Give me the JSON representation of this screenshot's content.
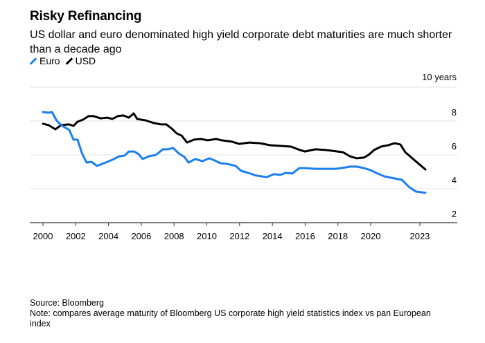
{
  "header": {
    "title": "Risky Refinancing",
    "subtitle": "US dollar and euro denominated high yield corporate debt maturities are much shorter than a decade ago"
  },
  "legend": [
    {
      "label": "Euro",
      "color": "#1a7ff0"
    },
    {
      "label": "USD",
      "color": "#000000"
    }
  ],
  "footer": {
    "source": "Source: Bloomberg",
    "note": "Note: compares average maturity of Bloomberg US corporate high yield statistics index vs pan European index"
  },
  "chart_data": {
    "type": "line",
    "title": "Risky Refinancing",
    "subtitle": "US dollar and euro denominated high yield corporate debt maturities are much shorter than a decade ago",
    "xlabel": "",
    "ylabel": "years",
    "xlim": [
      1999.2,
      2025.5
    ],
    "ylim": [
      2,
      10
    ],
    "x_ticks": [
      2000,
      2002,
      2004,
      2006,
      2008,
      2010,
      2012,
      2014,
      2016,
      2018,
      2020,
      2023
    ],
    "y_ticks": [
      {
        "value": 10,
        "label": "10 years"
      },
      {
        "value": 8,
        "label": "8"
      },
      {
        "value": 6,
        "label": "6"
      },
      {
        "value": 4,
        "label": "4"
      },
      {
        "value": 2,
        "label": "2"
      }
    ],
    "grid": true,
    "legend_position": "top-left",
    "series": [
      {
        "name": "Euro",
        "color": "#1a7ff0",
        "points": [
          [
            2000.0,
            8.53
          ],
          [
            2000.34,
            8.49
          ],
          [
            2000.55,
            8.53
          ],
          [
            2000.85,
            8.0
          ],
          [
            2001.18,
            7.71
          ],
          [
            2001.61,
            7.47
          ],
          [
            2001.86,
            6.9
          ],
          [
            2002.11,
            6.9
          ],
          [
            2002.37,
            6.12
          ],
          [
            2002.66,
            5.55
          ],
          [
            2002.96,
            5.59
          ],
          [
            2003.3,
            5.35
          ],
          [
            2003.72,
            5.51
          ],
          [
            2004.23,
            5.71
          ],
          [
            2004.65,
            5.92
          ],
          [
            2004.99,
            5.96
          ],
          [
            2005.24,
            6.2
          ],
          [
            2005.58,
            6.2
          ],
          [
            2005.84,
            6.04
          ],
          [
            2006.09,
            5.76
          ],
          [
            2006.47,
            5.92
          ],
          [
            2006.89,
            6.0
          ],
          [
            2007.32,
            6.33
          ],
          [
            2007.61,
            6.33
          ],
          [
            2007.95,
            6.41
          ],
          [
            2008.29,
            6.08
          ],
          [
            2008.63,
            5.88
          ],
          [
            2008.88,
            5.55
          ],
          [
            2009.3,
            5.76
          ],
          [
            2009.73,
            5.63
          ],
          [
            2010.15,
            5.8
          ],
          [
            2010.49,
            5.67
          ],
          [
            2010.83,
            5.51
          ],
          [
            2011.25,
            5.47
          ],
          [
            2011.76,
            5.35
          ],
          [
            2012.09,
            5.06
          ],
          [
            2012.52,
            4.94
          ],
          [
            2013.02,
            4.78
          ],
          [
            2013.66,
            4.69
          ],
          [
            2014.08,
            4.86
          ],
          [
            2014.5,
            4.82
          ],
          [
            2014.8,
            4.94
          ],
          [
            2015.22,
            4.9
          ],
          [
            2015.64,
            5.22
          ],
          [
            2015.98,
            5.22
          ],
          [
            2016.62,
            5.18
          ],
          [
            2017.25,
            5.18
          ],
          [
            2017.89,
            5.18
          ],
          [
            2018.52,
            5.27
          ],
          [
            2018.73,
            5.31
          ],
          [
            2019.15,
            5.31
          ],
          [
            2019.58,
            5.22
          ],
          [
            2020.0,
            5.1
          ],
          [
            2020.42,
            4.9
          ],
          [
            2020.85,
            4.73
          ],
          [
            2021.27,
            4.65
          ],
          [
            2021.9,
            4.53
          ],
          [
            2022.33,
            4.12
          ],
          [
            2022.75,
            3.84
          ],
          [
            2023.34,
            3.76
          ]
        ]
      },
      {
        "name": "USD",
        "color": "#000000",
        "points": [
          [
            2000.0,
            7.84
          ],
          [
            2000.34,
            7.76
          ],
          [
            2000.76,
            7.51
          ],
          [
            2001.1,
            7.76
          ],
          [
            2001.61,
            7.8
          ],
          [
            2001.86,
            7.71
          ],
          [
            2002.11,
            7.96
          ],
          [
            2002.45,
            8.08
          ],
          [
            2002.79,
            8.29
          ],
          [
            2003.09,
            8.29
          ],
          [
            2003.51,
            8.16
          ],
          [
            2003.93,
            8.2
          ],
          [
            2004.23,
            8.12
          ],
          [
            2004.57,
            8.29
          ],
          [
            2004.9,
            8.33
          ],
          [
            2005.24,
            8.2
          ],
          [
            2005.54,
            8.45
          ],
          [
            2005.75,
            8.12
          ],
          [
            2006.26,
            8.04
          ],
          [
            2006.77,
            7.88
          ],
          [
            2007.19,
            7.8
          ],
          [
            2007.53,
            7.8
          ],
          [
            2007.86,
            7.55
          ],
          [
            2008.16,
            7.27
          ],
          [
            2008.46,
            7.14
          ],
          [
            2008.79,
            6.73
          ],
          [
            2009.22,
            6.9
          ],
          [
            2009.64,
            6.94
          ],
          [
            2010.06,
            6.86
          ],
          [
            2010.57,
            6.94
          ],
          [
            2010.91,
            6.86
          ],
          [
            2011.54,
            6.78
          ],
          [
            2011.97,
            6.65
          ],
          [
            2012.6,
            6.73
          ],
          [
            2013.23,
            6.69
          ],
          [
            2013.87,
            6.57
          ],
          [
            2014.5,
            6.53
          ],
          [
            2015.14,
            6.49
          ],
          [
            2015.56,
            6.33
          ],
          [
            2015.98,
            6.2
          ],
          [
            2016.62,
            6.33
          ],
          [
            2017.25,
            6.29
          ],
          [
            2017.67,
            6.24
          ],
          [
            2018.31,
            6.16
          ],
          [
            2018.73,
            5.92
          ],
          [
            2019.15,
            5.8
          ],
          [
            2019.58,
            5.84
          ],
          [
            2019.87,
            6.0
          ],
          [
            2020.21,
            6.29
          ],
          [
            2020.63,
            6.49
          ],
          [
            2021.06,
            6.57
          ],
          [
            2021.48,
            6.69
          ],
          [
            2021.82,
            6.61
          ],
          [
            2022.11,
            6.16
          ],
          [
            2022.75,
            5.63
          ],
          [
            2023.34,
            5.14
          ]
        ]
      }
    ]
  }
}
